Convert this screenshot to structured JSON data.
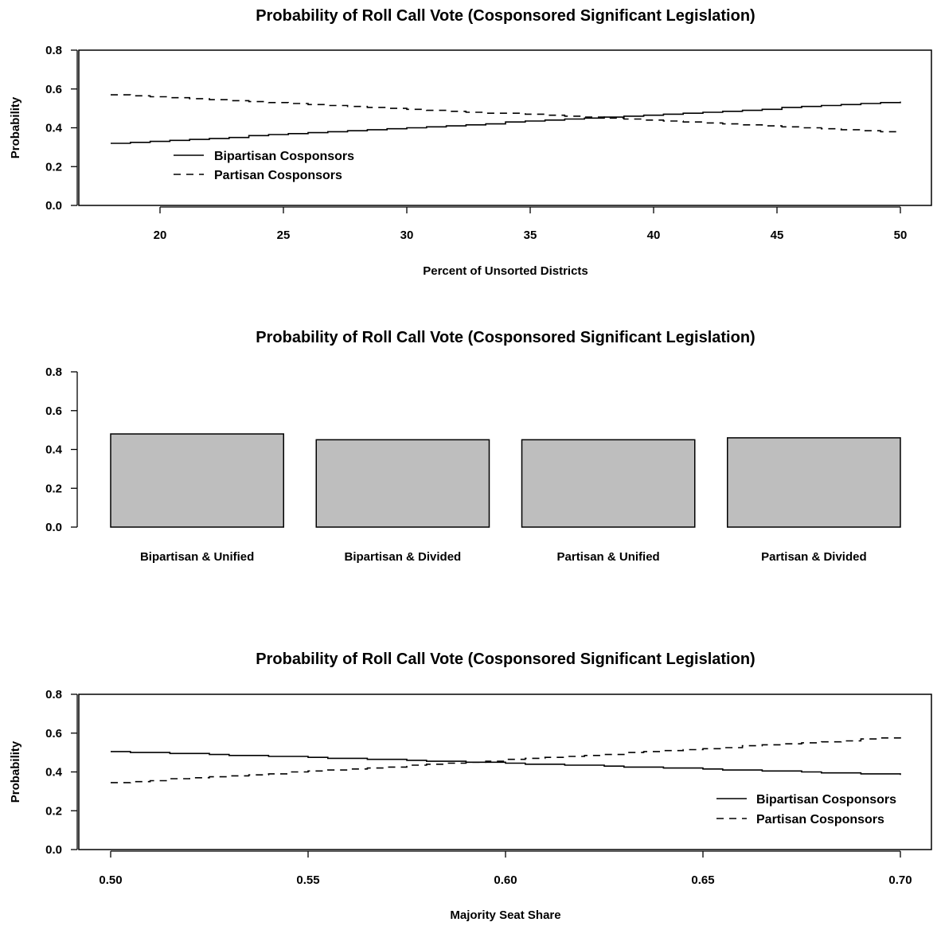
{
  "chart_data": [
    {
      "type": "line",
      "title": "Probability of Roll Call Vote (Cosponsored Significant Legislation)",
      "xlabel": "Percent of Unsorted Districts",
      "ylabel": "Probability",
      "xlim": [
        18,
        50
      ],
      "ylim": [
        0,
        0.8
      ],
      "xticks": [
        20,
        25,
        30,
        35,
        40,
        45,
        50
      ],
      "xtick_labels": [
        "20",
        "25",
        "30",
        "35",
        "40",
        "45",
        "50"
      ],
      "yticks": [
        0,
        0.2,
        0.4,
        0.6,
        0.8
      ],
      "ytick_labels": [
        "0.0",
        "0.2",
        "0.4",
        "0.6",
        "0.8"
      ],
      "grid": false,
      "legend": "bottom-left",
      "series": [
        {
          "name": "Bipartisan Cosponsors",
          "style": "solid",
          "x": [
            18,
            50
          ],
          "y": [
            0.32,
            0.535
          ]
        },
        {
          "name": "Partisan Cosponsors",
          "style": "dashed",
          "x": [
            18,
            50
          ],
          "y": [
            0.57,
            0.375
          ]
        }
      ]
    },
    {
      "type": "bar",
      "title": "Probability of Roll Call Vote (Cosponsored Significant Legislation)",
      "xlabel": "",
      "ylabel": "",
      "ylim": [
        0,
        0.8
      ],
      "yticks": [
        0,
        0.2,
        0.4,
        0.6,
        0.8
      ],
      "ytick_labels": [
        "0.0",
        "0.2",
        "0.4",
        "0.6",
        "0.8"
      ],
      "grid": false,
      "bar_color": "#bebebe",
      "categories": [
        "Bipartisan & Unified",
        "Bipartisan & Divided",
        "Partisan & Unified",
        "Partisan & Divided"
      ],
      "values": [
        0.48,
        0.45,
        0.45,
        0.46
      ]
    },
    {
      "type": "line",
      "title": "Probability of Roll Call Vote (Cosponsored Significant Legislation)",
      "xlabel": "Majority Seat Share",
      "ylabel": "Probability",
      "xlim": [
        0.5,
        0.7
      ],
      "ylim": [
        0,
        0.8
      ],
      "xticks": [
        0.5,
        0.55,
        0.6,
        0.65,
        0.7
      ],
      "xtick_labels": [
        "0.50",
        "0.55",
        "0.60",
        "0.65",
        "0.70"
      ],
      "yticks": [
        0,
        0.2,
        0.4,
        0.6,
        0.8
      ],
      "ytick_labels": [
        "0.0",
        "0.2",
        "0.4",
        "0.6",
        "0.8"
      ],
      "grid": false,
      "legend": "bottom-right",
      "series": [
        {
          "name": "Bipartisan Cosponsors",
          "style": "solid",
          "x": [
            0.5,
            0.7
          ],
          "y": [
            0.505,
            0.385
          ]
        },
        {
          "name": "Partisan Cosponsors",
          "style": "dashed",
          "x": [
            0.5,
            0.7
          ],
          "y": [
            0.345,
            0.58
          ]
        }
      ]
    }
  ]
}
